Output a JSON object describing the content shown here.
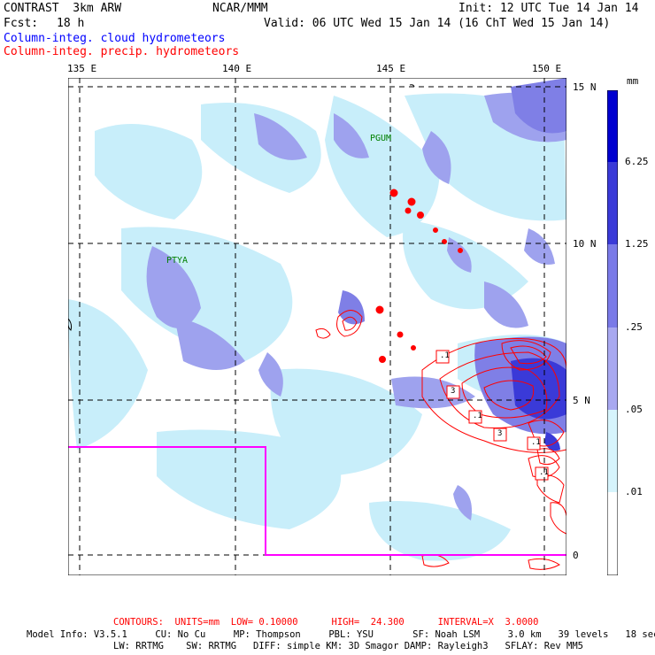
{
  "header": {
    "model": "CONTRAST  3km ARW",
    "org": "NCAR/MMM",
    "init": "Init: 12 UTC Tue 14 Jan 14",
    "fcst_label": "Fcst:",
    "fcst_value": "18 h",
    "valid": "Valid: 06 UTC Wed 15 Jan 14 (16 ChT Wed 15 Jan 14)",
    "field1": "Column-integ. cloud hydrometeors",
    "field2": "Column-integ. precip. hydrometeors"
  },
  "map": {
    "lon_labels": [
      "135 E",
      "140 E",
      "145 E",
      "150 E"
    ],
    "lat_labels": [
      "15 N",
      "10 N",
      "5 N",
      "0"
    ],
    "stations": [
      "PGUM",
      "PTYA"
    ],
    "contour_labels": [
      ".1",
      "3",
      ".1",
      "3",
      ".1",
      ".1"
    ],
    "colors": {
      "cloud_light": "#c8eefa",
      "cloud_mid": "#9ea2ee",
      "cloud_dark": "#7f7fe6",
      "precip": "#ff0000",
      "box": "#ff00ff"
    }
  },
  "legend": {
    "unit": "mm",
    "levels": [
      "6.25",
      "1.25",
      ".25",
      ".05",
      ".01"
    ],
    "colors": [
      "#0000d0",
      "#3a3ad8",
      "#7a7ae8",
      "#a8a8f0",
      "#d6f4fc",
      "#ffffff"
    ]
  },
  "footer": {
    "contours": "CONTOURS:  UNITS=mm  LOW= 0.10000      HIGH=  24.300      INTERVAL=X  3.0000",
    "line1": "Model Info: V3.5.1     CU: No Cu     MP: Thompson     PBL: YSU       SF: Noah LSM     3.0 km   39 levels   18 sec",
    "line2": "LW: RRTMG    SW: RRTMG   DIFF: simple KM: 3D Smagor DAMP: Rayleigh3   SFLAY: Rev MM5"
  }
}
